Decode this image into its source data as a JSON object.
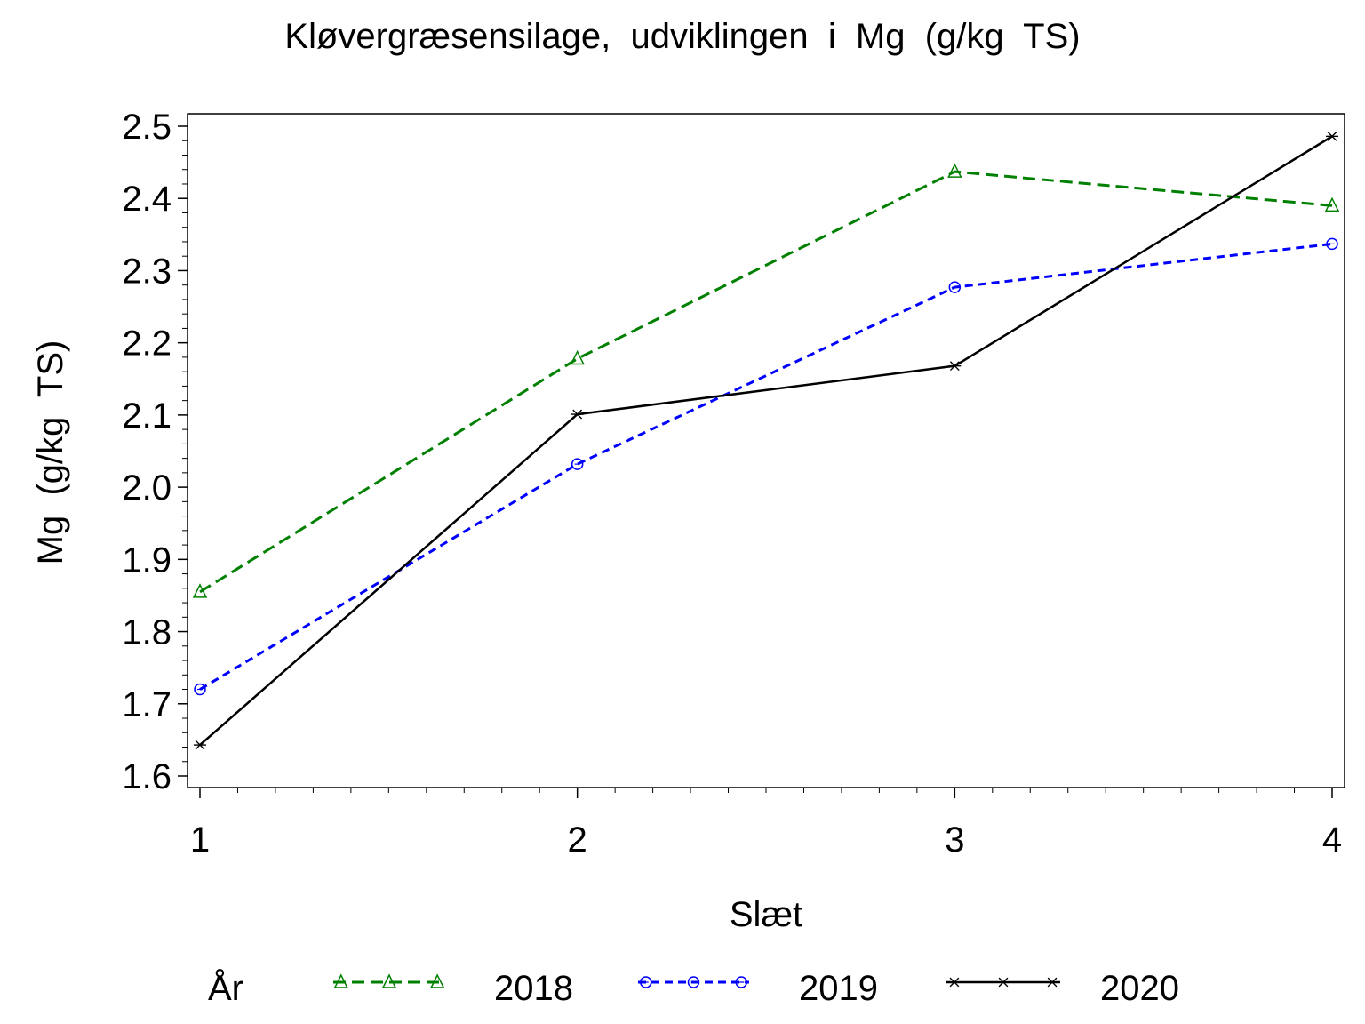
{
  "chart_data": {
    "type": "line",
    "title": "Kløvergræsensilage,  udviklingen  i  Mg  (g/kg  TS)",
    "xlabel": "Slæt",
    "ylabel": "Mg  (g/kg  TS)",
    "x": [
      1,
      2,
      3,
      4
    ],
    "x_ticks": [
      "1",
      "2",
      "3",
      "4"
    ],
    "xlim": [
      1,
      4
    ],
    "ylim": [
      1.6,
      2.5
    ],
    "y_ticks": [
      "1.6",
      "1.7",
      "1.8",
      "1.9",
      "2.0",
      "2.1",
      "2.2",
      "2.3",
      "2.4",
      "2.5"
    ],
    "grid": false,
    "legend": {
      "title": "År",
      "placement": "bottom"
    },
    "series": [
      {
        "name": "2018",
        "values": [
          1.855,
          2.178,
          2.437,
          2.39
        ],
        "color": "#008000",
        "dash": "long-dash",
        "marker": "triangle-icon"
      },
      {
        "name": "2019",
        "values": [
          1.72,
          2.032,
          2.277,
          2.337
        ],
        "color": "#0000ff",
        "dash": "short-dash",
        "marker": "circle-icon"
      },
      {
        "name": "2020",
        "values": [
          1.643,
          2.101,
          2.168,
          2.486
        ],
        "color": "#000000",
        "dash": "solid",
        "marker": "star-icon"
      }
    ]
  }
}
